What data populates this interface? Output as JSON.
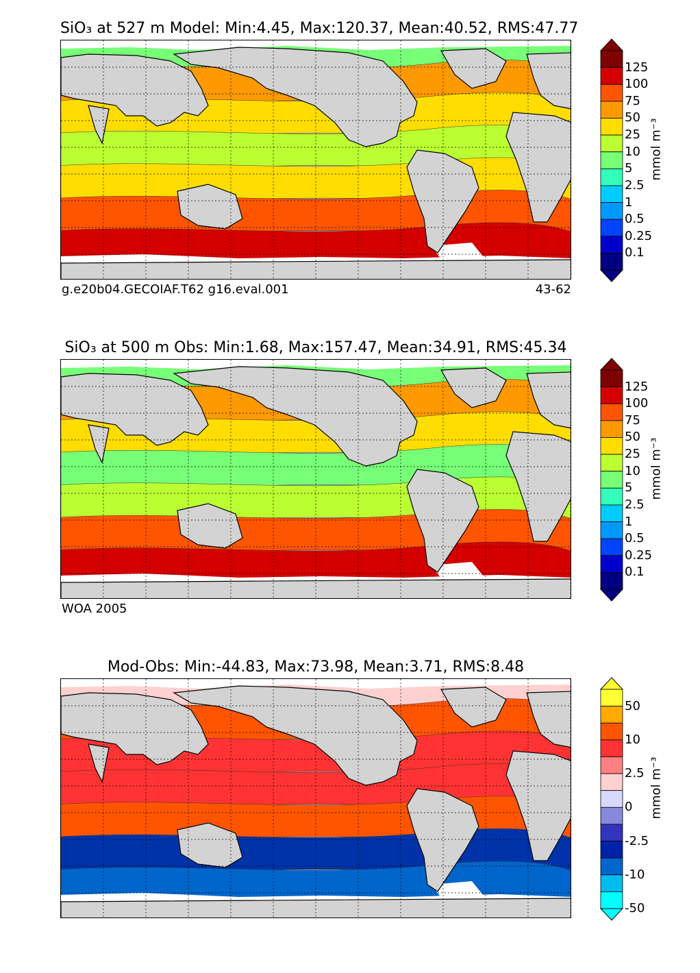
{
  "panels": [
    {
      "title": "SiO₃ at 527 m Model: Min:4.45, Max:120.37, Mean:40.52, RMS:47.77",
      "footer_left": "g.e20b04.GECOIAF.T62 g16.eval.001",
      "footer_right": "43-62",
      "units": "mmol m⁻³",
      "colorbar": {
        "labels": [
          "125",
          "100",
          "75",
          "50",
          "25",
          "10",
          "5",
          "2.5",
          "1",
          "0.5",
          "0.25",
          "0.1"
        ],
        "colors": [
          "#7f0000",
          "#d40000",
          "#ff5500",
          "#ff9900",
          "#ffdd00",
          "#bbff33",
          "#77ff77",
          "#33ffbb",
          "#00ccff",
          "#0099ff",
          "#0044ff",
          "#0000cc",
          "#000080"
        ]
      },
      "ocean_bands": [
        "#ff9900",
        "#ffdd00",
        "#bbff33",
        "#ffdd00",
        "#ff5500",
        "#d40000"
      ],
      "arctic_color": "#77ff77"
    },
    {
      "title": "SiO₃ at 500 m Obs: Min:1.68, Max:157.47, Mean:34.91, RMS:45.34",
      "footer_left": "WOA 2005",
      "footer_right": "",
      "units": "mmol m⁻³",
      "colorbar": {
        "labels": [
          "125",
          "100",
          "75",
          "50",
          "25",
          "10",
          "5",
          "2.5",
          "1",
          "0.5",
          "0.25",
          "0.1"
        ],
        "colors": [
          "#7f0000",
          "#d40000",
          "#ff5500",
          "#ff9900",
          "#ffdd00",
          "#bbff33",
          "#77ff77",
          "#33ffbb",
          "#00ccff",
          "#0099ff",
          "#0044ff",
          "#0000cc",
          "#000080"
        ]
      },
      "ocean_bands": [
        "#ff9900",
        "#ffdd00",
        "#77ff77",
        "#bbff33",
        "#ff5500",
        "#d40000"
      ],
      "arctic_color": "#77ff77"
    },
    {
      "title": "Mod-Obs: Min:-44.83, Max:73.98, Mean:3.71, RMS:8.48",
      "footer_left": "",
      "footer_right": "",
      "units": "mmol m⁻³",
      "colorbar": {
        "labels": [
          "50",
          "10",
          "2.5",
          "0",
          "-2.5",
          "-10",
          "-50"
        ],
        "colors": [
          "#ffff33",
          "#ffaa00",
          "#ff5500",
          "#ff3333",
          "#ff8080",
          "#ffd0d0",
          "#d8d8ff",
          "#8888dd",
          "#3333bb",
          "#0022aa",
          "#0066cc",
          "#00bbee",
          "#00ffff"
        ]
      },
      "ocean_bands": [
        "#ff5500",
        "#ff3333",
        "#ff3333",
        "#ff5500",
        "#0033aa",
        "#0066cc"
      ],
      "arctic_color": "#ffd0d0"
    }
  ]
}
